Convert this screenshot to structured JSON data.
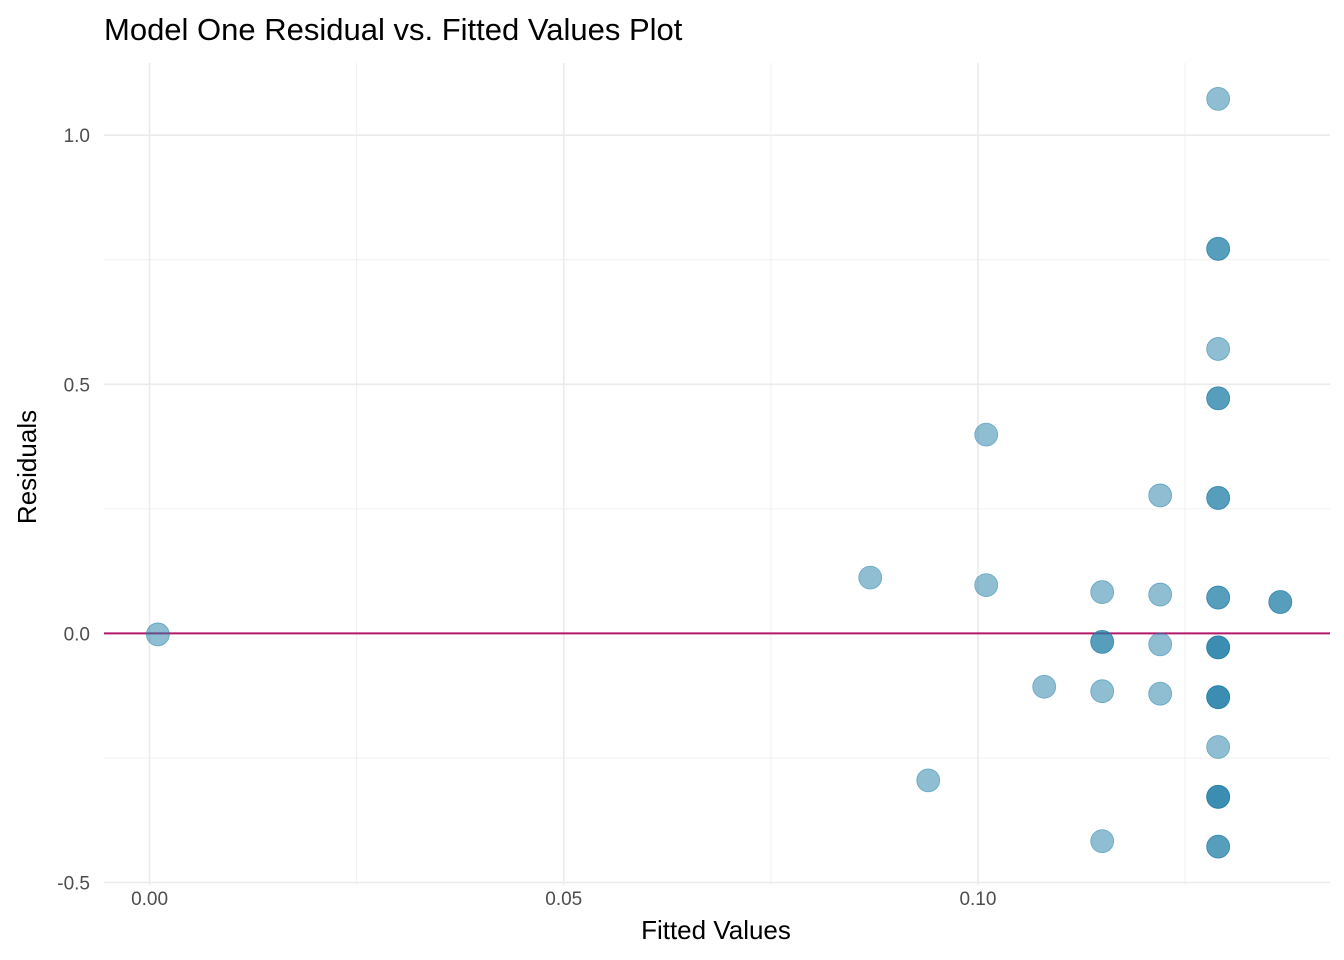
{
  "chart_data": {
    "type": "scatter",
    "title": "Model One Residual vs. Fitted Values Plot",
    "xlabel": "Fitted Values",
    "ylabel": "Residuals",
    "xlim": [
      -0.0055,
      0.1425
    ],
    "ylim": [
      -0.505,
      1.145
    ],
    "x_ticks": [
      {
        "value": 0.0,
        "label": "0.00"
      },
      {
        "value": 0.05,
        "label": "0.05"
      },
      {
        "value": 0.1,
        "label": "0.10"
      }
    ],
    "x_minor_ticks": [
      0.025,
      0.075,
      0.125
    ],
    "y_ticks": [
      {
        "value": -0.5,
        "label": "-0.5"
      },
      {
        "value": 0.0,
        "label": "0.0"
      },
      {
        "value": 0.5,
        "label": "0.5"
      },
      {
        "value": 1.0,
        "label": "1.0"
      }
    ],
    "y_minor_ticks": [
      -0.25,
      0.25,
      0.75
    ],
    "grid": true,
    "reference_line": {
      "y": 0.0,
      "color": "#b5176b"
    },
    "point_color": "#1f7ea8",
    "point_opacity": 0.5,
    "points": [
      {
        "x": 0.001,
        "y": -0.002
      },
      {
        "x": 0.087,
        "y": 0.112
      },
      {
        "x": 0.094,
        "y": -0.295
      },
      {
        "x": 0.101,
        "y": 0.399
      },
      {
        "x": 0.101,
        "y": 0.097
      },
      {
        "x": 0.108,
        "y": -0.107
      },
      {
        "x": 0.115,
        "y": 0.083
      },
      {
        "x": 0.115,
        "y": -0.017
      },
      {
        "x": 0.115,
        "y": -0.017
      },
      {
        "x": 0.115,
        "y": -0.116
      },
      {
        "x": 0.115,
        "y": -0.417
      },
      {
        "x": 0.122,
        "y": 0.277
      },
      {
        "x": 0.122,
        "y": 0.078
      },
      {
        "x": 0.122,
        "y": -0.022
      },
      {
        "x": 0.122,
        "y": -0.121
      },
      {
        "x": 0.129,
        "y": 1.073
      },
      {
        "x": 0.129,
        "y": 0.772
      },
      {
        "x": 0.129,
        "y": 0.772
      },
      {
        "x": 0.129,
        "y": 0.571
      },
      {
        "x": 0.129,
        "y": 0.472
      },
      {
        "x": 0.129,
        "y": 0.472
      },
      {
        "x": 0.129,
        "y": 0.272
      },
      {
        "x": 0.129,
        "y": 0.272
      },
      {
        "x": 0.129,
        "y": 0.072
      },
      {
        "x": 0.129,
        "y": 0.072
      },
      {
        "x": 0.129,
        "y": -0.028
      },
      {
        "x": 0.129,
        "y": -0.028
      },
      {
        "x": 0.129,
        "y": -0.028
      },
      {
        "x": 0.129,
        "y": -0.128
      },
      {
        "x": 0.129,
        "y": -0.128
      },
      {
        "x": 0.129,
        "y": -0.128
      },
      {
        "x": 0.129,
        "y": -0.228
      },
      {
        "x": 0.129,
        "y": -0.328
      },
      {
        "x": 0.129,
        "y": -0.328
      },
      {
        "x": 0.129,
        "y": -0.328
      },
      {
        "x": 0.129,
        "y": -0.428
      },
      {
        "x": 0.129,
        "y": -0.428
      },
      {
        "x": 0.1365,
        "y": 0.063
      },
      {
        "x": 0.1365,
        "y": 0.063
      }
    ]
  }
}
